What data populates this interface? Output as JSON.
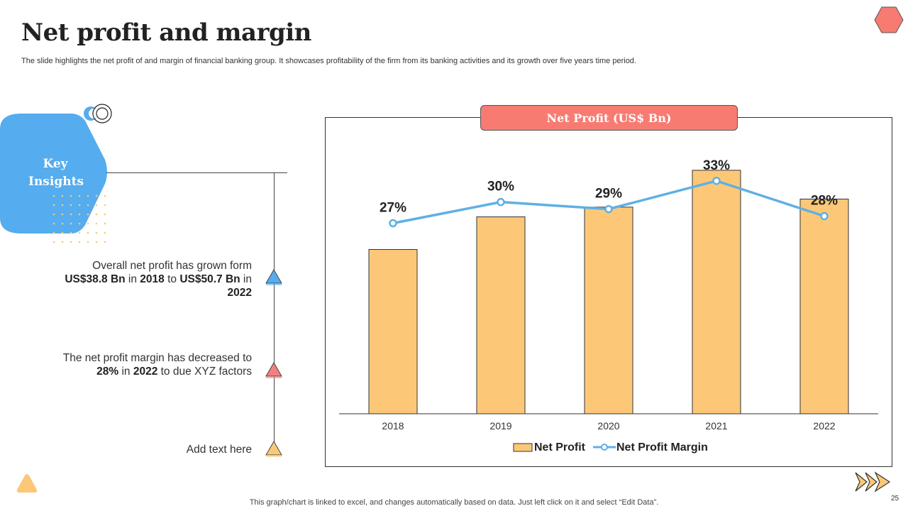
{
  "header": {
    "title": "Net profit and margin",
    "subtitle": "The slide highlights the net profit of and margin of financial banking group. It showcases profitability of the firm from its banking activities and its growth over five years time period."
  },
  "insights": {
    "label": "Key Insights",
    "items": [
      {
        "parts": [
          {
            "text": "Overall net profit has grown form ",
            "bold": false
          },
          {
            "text": "US$38.8 Bn",
            "bold": true
          },
          {
            "text": " in ",
            "bold": false
          },
          {
            "text": "2018",
            "bold": true
          },
          {
            "text": " to ",
            "bold": false
          },
          {
            "text": "US$50.7 Bn",
            "bold": true
          },
          {
            "text": " in ",
            "bold": false
          },
          {
            "text": "2022",
            "bold": true
          }
        ],
        "color": "#5aa9e6"
      },
      {
        "parts": [
          {
            "text": "The net profit margin has decreased to ",
            "bold": false
          },
          {
            "text": "28%",
            "bold": true
          },
          {
            "text": " in ",
            "bold": false
          },
          {
            "text": "2022",
            "bold": true
          },
          {
            "text": " to due XYZ factors",
            "bold": false
          }
        ],
        "color": "#f08080"
      },
      {
        "parts": [
          {
            "text": "Add text here",
            "bold": false
          }
        ],
        "color": "#f9c97a"
      }
    ]
  },
  "footer": {
    "note": "This graph/chart is linked to excel,  and changes automatically based on data. Just left click on it and select “Edit Data”.",
    "page_number": "25"
  },
  "colors": {
    "bar": "#fcc878",
    "line": "#5fb0e4",
    "title_box": "#f87b72",
    "accent_blue": "#55acee"
  },
  "chart_data": {
    "type": "bar",
    "title": "Net Profit (US$ Bn)",
    "categories": [
      "2018",
      "2019",
      "2020",
      "2021",
      "2022"
    ],
    "series": [
      {
        "name": "Net Profit",
        "type": "bar",
        "values": [
          38.8,
          46.5,
          48.8,
          57.5,
          50.7
        ]
      },
      {
        "name": "Net Profit Margin",
        "type": "line",
        "values": [
          27,
          30,
          29,
          33,
          28
        ],
        "labels": [
          "27%",
          "30%",
          "29%",
          "33%",
          "28%"
        ]
      }
    ],
    "bar_ylim": [
      0,
      60
    ],
    "line_ylim": [
      0,
      36
    ],
    "legend": "bottom"
  }
}
